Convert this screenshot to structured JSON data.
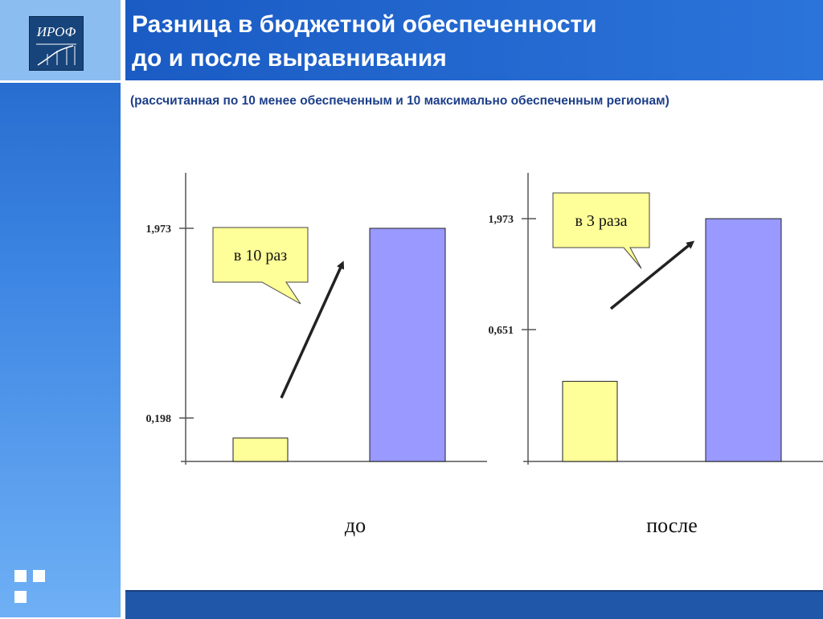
{
  "header": {
    "title_line1": "Разница в бюджетной обеспеченности",
    "title_line2": "до и после выравнивания",
    "subtitle": "(рассчитанная по 10 менее обеспеченным и 10 максимально обеспеченным регионам)"
  },
  "logo": {
    "text": "ИРОФ"
  },
  "colors": {
    "header_blue": "#1a5bc4",
    "bar_low": "#ffff99",
    "bar_high": "#9999ff",
    "callout": "#ffff99"
  },
  "chart_data": [
    {
      "type": "bar",
      "category": "до",
      "categories": [
        "",
        ""
      ],
      "values": [
        0.198,
        1.973
      ],
      "tick_labels": [
        "0,198",
        "1,973"
      ],
      "callout": "в 10 раз"
    },
    {
      "type": "bar",
      "category": "после",
      "categories": [
        "",
        ""
      ],
      "values": [
        0.651,
        1.973
      ],
      "tick_labels": [
        "0,651",
        "1,973"
      ],
      "callout": "в 3 раза"
    }
  ]
}
